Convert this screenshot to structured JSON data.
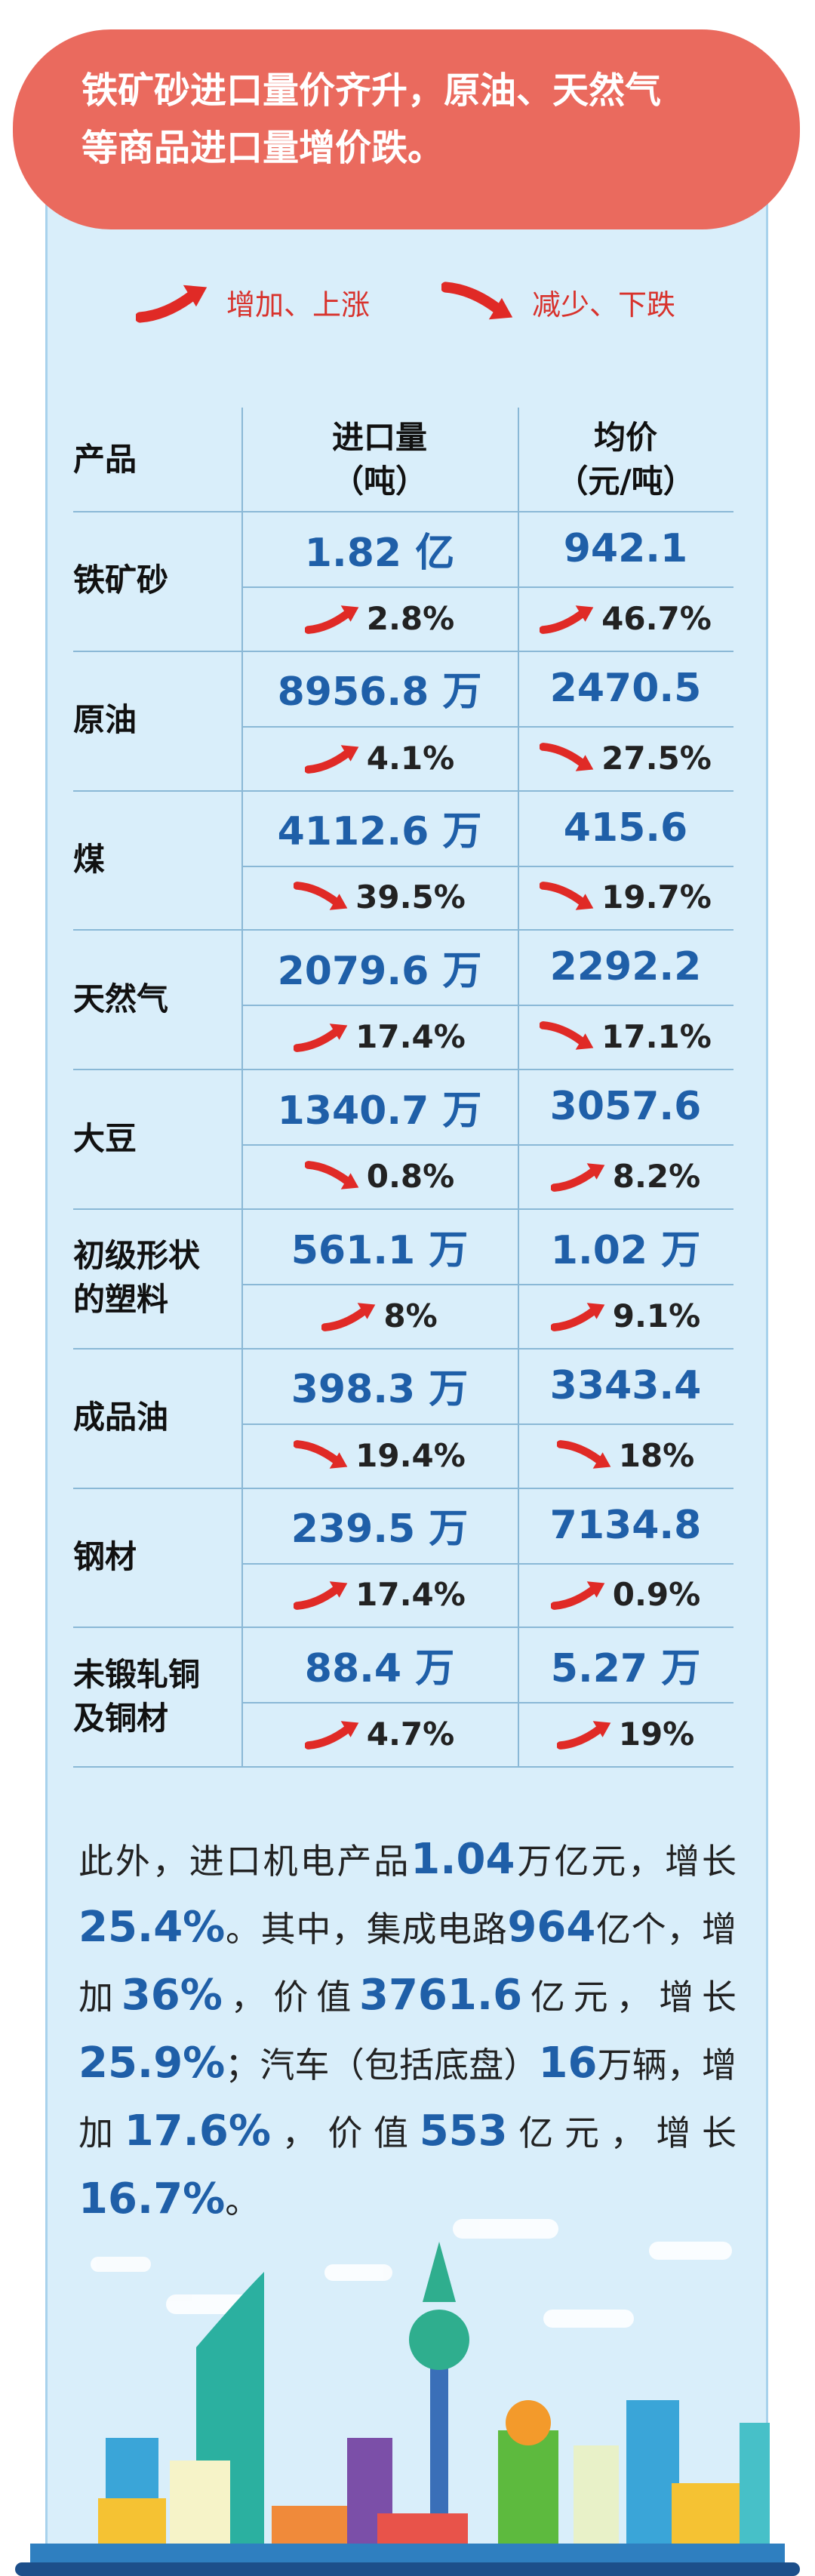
{
  "header": {
    "title_lines": [
      "铁矿砂进口量价齐升，原油、天然气",
      "等商品进口量增价跌。"
    ]
  },
  "legend": {
    "increase": "增加、上涨",
    "decrease": "减少、下跌"
  },
  "table": {
    "columns": [
      {
        "name": "产品"
      },
      {
        "name": "进口量",
        "unit": "（吨）"
      },
      {
        "name": "均价",
        "unit": "（元/吨）"
      }
    ],
    "rows": [
      {
        "product": "铁矿砂",
        "volume": "1.82 亿",
        "volume_change": {
          "direction": "up",
          "value": "2.8%"
        },
        "price": "942.1",
        "price_change": {
          "direction": "up",
          "value": "46.7%"
        }
      },
      {
        "product": "原油",
        "volume": "8956.8 万",
        "volume_change": {
          "direction": "up",
          "value": "4.1%"
        },
        "price": "2470.5",
        "price_change": {
          "direction": "down",
          "value": "27.5%"
        }
      },
      {
        "product": "煤",
        "volume": "4112.6 万",
        "volume_change": {
          "direction": "down",
          "value": "39.5%"
        },
        "price": "415.6",
        "price_change": {
          "direction": "down",
          "value": "19.7%"
        }
      },
      {
        "product": "天然气",
        "volume": "2079.6 万",
        "volume_change": {
          "direction": "up",
          "value": "17.4%"
        },
        "price": "2292.2",
        "price_change": {
          "direction": "down",
          "value": "17.1%"
        }
      },
      {
        "product": "大豆",
        "volume": "1340.7 万",
        "volume_change": {
          "direction": "down",
          "value": "0.8%"
        },
        "price": "3057.6",
        "price_change": {
          "direction": "up",
          "value": "8.2%"
        }
      },
      {
        "product": "初级形状的塑料",
        "volume": "561.1 万",
        "volume_change": {
          "direction": "up",
          "value": "8%"
        },
        "price": "1.02 万",
        "price_change": {
          "direction": "up",
          "value": "9.1%"
        }
      },
      {
        "product": "成品油",
        "volume": "398.3 万",
        "volume_change": {
          "direction": "down",
          "value": "19.4%"
        },
        "price": "3343.4",
        "price_change": {
          "direction": "down",
          "value": "18%"
        }
      },
      {
        "product": "钢材",
        "volume": "239.5 万",
        "volume_change": {
          "direction": "up",
          "value": "17.4%"
        },
        "price": "7134.8",
        "price_change": {
          "direction": "up",
          "value": "0.9%"
        }
      },
      {
        "product": "未锻轧铜及铜材",
        "volume": "88.4 万",
        "volume_change": {
          "direction": "up",
          "value": "4.7%"
        },
        "price": "5.27 万",
        "price_change": {
          "direction": "up",
          "value": "19%"
        }
      }
    ]
  },
  "paragraph": [
    {
      "text": "此外，进口机电产品",
      "bold": false
    },
    {
      "text": "1.04",
      "bold": true
    },
    {
      "text": "万亿元，增长",
      "bold": false
    },
    {
      "text": "25.4%",
      "bold": true
    },
    {
      "text": "。其中，集成电路",
      "bold": false
    },
    {
      "text": "964",
      "bold": true
    },
    {
      "text": "亿个，增加",
      "bold": false
    },
    {
      "text": "36%",
      "bold": true
    },
    {
      "text": "，价值",
      "bold": false
    },
    {
      "text": "3761.6",
      "bold": true
    },
    {
      "text": "亿元，增长",
      "bold": false
    },
    {
      "text": "25.9%",
      "bold": true
    },
    {
      "text": "；汽车（包括底盘）",
      "bold": false
    },
    {
      "text": "16",
      "bold": true
    },
    {
      "text": "万辆，增加",
      "bold": false
    },
    {
      "text": "17.6%",
      "bold": true
    },
    {
      "text": "，价值",
      "bold": false
    },
    {
      "text": "553",
      "bold": true
    },
    {
      "text": "亿元，增长",
      "bold": false
    },
    {
      "text": "16.7%",
      "bold": true
    },
    {
      "text": "。",
      "bold": false
    }
  ]
}
